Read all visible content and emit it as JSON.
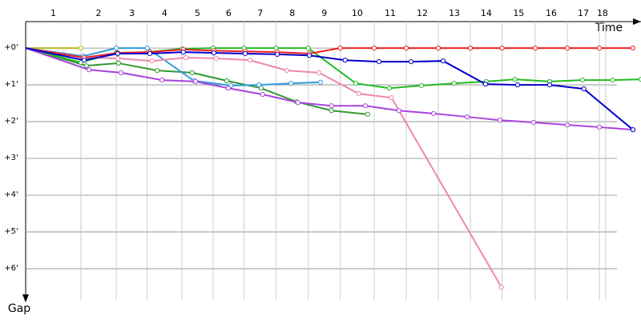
{
  "chart_data": {
    "type": "line",
    "x_label": "Time",
    "y_label": "Gap",
    "categories": [
      "1",
      "2",
      "3",
      "4",
      "5",
      "6",
      "7",
      "8",
      "9",
      "10",
      "11",
      "12",
      "13",
      "14",
      "15",
      "16",
      "17",
      "18"
    ],
    "category_ends": [
      1.5,
      2.46,
      3.3,
      4.24,
      5.09,
      5.93,
      6.8,
      7.67,
      8.54,
      9.46,
      10.33,
      11.2,
      12.07,
      12.93,
      13.83,
      14.7,
      15.57,
      15.74
    ],
    "xlim": [
      0,
      16.7
    ],
    "ylim": [
      -0.72,
      6.85
    ],
    "y_reversed": true,
    "grid": true,
    "yticks": [
      {
        "value": 0,
        "label": "+0'"
      },
      {
        "value": 1,
        "label": "+1'"
      },
      {
        "value": 2,
        "label": "+2'"
      },
      {
        "value": 3,
        "label": "+3'"
      },
      {
        "value": 4,
        "label": "+4'"
      },
      {
        "value": 5,
        "label": "+5'"
      },
      {
        "value": 6,
        "label": "+6'"
      }
    ],
    "series": [
      {
        "color": "#bbbb22",
        "x": [
          0,
          1.5
        ],
        "values": [
          0,
          0
        ]
      },
      {
        "color": "#339933",
        "x": [
          0,
          1.65,
          2.52,
          3.57,
          4.52,
          5.46,
          6.39,
          7.35,
          8.3,
          9.28
        ],
        "values": [
          0,
          0.48,
          0.41,
          0.61,
          0.67,
          0.89,
          1.09,
          1.46,
          1.7,
          1.8
        ]
      },
      {
        "color": "#22bb22",
        "x": [
          0,
          1.5,
          2.46,
          3.3,
          4.24,
          5.09,
          5.93,
          6.8,
          7.67,
          8.96,
          9.87,
          10.74,
          11.63,
          12.5,
          13.28,
          14.22,
          15.11,
          15.93,
          16.7
        ],
        "values": [
          0,
          0.39,
          0.13,
          0.11,
          0.02,
          0,
          0,
          0,
          0,
          0.96,
          1.09,
          1.02,
          0.96,
          0.91,
          0.85,
          0.91,
          0.87,
          0.87,
          0.85
        ]
      },
      {
        "color": "#3399dd",
        "x": [
          0,
          1.57,
          2.46,
          3.3,
          4.57,
          5.57,
          6.33,
          7.2,
          8
        ],
        "values": [
          0,
          0.22,
          0,
          0,
          0.89,
          1.02,
          1,
          0.96,
          0.93
        ]
      },
      {
        "color": "#ee88aa",
        "x": [
          0,
          1.59,
          2.5,
          3.43,
          4.35,
          5.17,
          6.09,
          7.09,
          7.96,
          9.04,
          9.93,
          12.91
        ],
        "values": [
          0,
          0.26,
          0.28,
          0.35,
          0.26,
          0.28,
          0.33,
          0.61,
          0.67,
          1.24,
          1.35,
          6.5
        ]
      },
      {
        "color": "#aa44dd",
        "x": [
          0,
          1.72,
          2.59,
          3.7,
          4.61,
          5.5,
          6.43,
          7.39,
          8.3,
          9.22,
          10.13,
          11.07,
          11.98,
          12.87,
          13.78,
          14.7,
          15.57,
          16.48
        ],
        "values": [
          0,
          0.59,
          0.67,
          0.87,
          0.91,
          1.09,
          1.26,
          1.48,
          1.57,
          1.57,
          1.7,
          1.78,
          1.87,
          1.96,
          2.02,
          2.09,
          2.15,
          2.22
        ]
      },
      {
        "color": "#ee2222",
        "x": [
          0,
          1.59,
          2.5,
          3.37,
          4.28,
          5.11,
          5.96,
          6.83,
          7.7,
          8.54,
          9.46,
          10.33,
          11.2,
          12.07,
          12.93,
          13.83,
          14.7,
          15.57,
          16.48
        ],
        "values": [
          0,
          0.26,
          0.13,
          0.11,
          0.04,
          0.07,
          0.09,
          0.11,
          0.15,
          0,
          0,
          0,
          0,
          0,
          0,
          0,
          0,
          0,
          0
        ]
      },
      {
        "color": "#0000cc",
        "x": [
          0,
          1.59,
          2.5,
          3.37,
          4.28,
          5.11,
          5.96,
          6.83,
          7.7,
          8.67,
          9.59,
          10.46,
          11.33,
          12.48,
          13.35,
          14.22,
          15.15,
          16.48
        ],
        "values": [
          0,
          0.33,
          0.15,
          0.15,
          0.11,
          0.13,
          0.15,
          0.17,
          0.2,
          0.33,
          0.37,
          0.37,
          0.35,
          0.98,
          1,
          1,
          1.11,
          2.22
        ]
      }
    ]
  }
}
